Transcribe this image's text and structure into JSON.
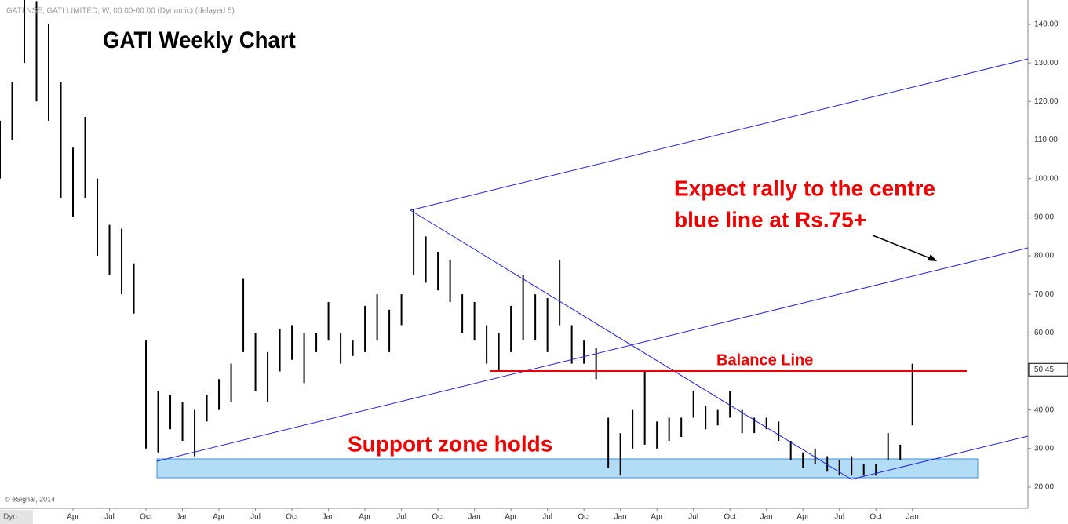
{
  "header": "GATI.NSE, GATI LIMITED, W, 00:00-00:00 (Dynamic) (delayed 5)",
  "footer": "© eSignal, 2014",
  "mode": "Dyn",
  "chart_data": {
    "type": "ohlc",
    "title": "GATI Weekly Chart",
    "annotations": {
      "rally": [
        "Expect rally to the centre",
        "blue line at Rs.75+"
      ],
      "balance": "Balance Line",
      "support": "Support zone holds"
    },
    "color": "#000000",
    "x": [
      0,
      1,
      2,
      3,
      4,
      5,
      6,
      7,
      8,
      9,
      10,
      11,
      12,
      13,
      14,
      15,
      16,
      17,
      18,
      19,
      20,
      21,
      22,
      23,
      24,
      25,
      26,
      27,
      28,
      29,
      30,
      31,
      32,
      33,
      34,
      35,
      36,
      37,
      38,
      39,
      40,
      41,
      42,
      43,
      44,
      45,
      46,
      47,
      48,
      49,
      50,
      51,
      52,
      53,
      54,
      55,
      56,
      57,
      58,
      59,
      60,
      61,
      62,
      63,
      64,
      65,
      66,
      67,
      68,
      69,
      70,
      71,
      72,
      73,
      74,
      75
    ],
    "high": [
      115,
      125,
      147,
      146,
      140,
      125,
      108,
      116,
      100,
      88,
      87,
      78,
      58,
      45,
      44,
      42,
      40,
      44,
      48,
      52,
      74,
      60,
      55,
      61,
      62,
      60,
      60,
      68,
      60,
      58,
      67,
      70,
      66,
      70,
      92,
      85,
      81,
      79,
      70,
      68,
      62,
      60,
      67,
      75,
      70,
      69,
      79,
      62,
      58,
      56,
      38,
      34,
      40,
      50,
      37,
      38,
      38,
      45,
      41,
      40,
      45,
      40,
      38,
      38,
      37,
      32,
      29,
      30,
      28,
      27,
      28,
      26,
      26,
      34,
      31,
      52
    ],
    "low": [
      100,
      110,
      130,
      120,
      115,
      95,
      90,
      95,
      80,
      75,
      70,
      65,
      30,
      29,
      35,
      32,
      28,
      37,
      40,
      42,
      55,
      45,
      42,
      50,
      53,
      47,
      55,
      58,
      52,
      54,
      55,
      58,
      55,
      62,
      75,
      73,
      71,
      68,
      60,
      58,
      52,
      50,
      55,
      58,
      58,
      55,
      62,
      52,
      52,
      48,
      25,
      23,
      30,
      31,
      30,
      32,
      33,
      38,
      35,
      36,
      38,
      34,
      34,
      35,
      32,
      27,
      25,
      26,
      24,
      23,
      23,
      23,
      23,
      27,
      27,
      36
    ],
    "last_price": 50.45,
    "xlim": [
      0,
      84.5
    ],
    "xticks": [
      {
        "value": 6,
        "label": "Apr"
      },
      {
        "value": 9,
        "label": "Jul"
      },
      {
        "value": 12,
        "label": "Oct"
      },
      {
        "value": 15,
        "label": "Jan"
      },
      {
        "value": 18,
        "label": "Apr"
      },
      {
        "value": 21,
        "label": "Jul"
      },
      {
        "value": 24,
        "label": "Oct"
      },
      {
        "value": 27,
        "label": "Jan"
      },
      {
        "value": 30,
        "label": "Apr"
      },
      {
        "value": 33,
        "label": "Jul"
      },
      {
        "value": 36,
        "label": "Oct"
      },
      {
        "value": 39,
        "label": "Jan"
      },
      {
        "value": 42,
        "label": "Apr"
      },
      {
        "value": 45,
        "label": "Jul"
      },
      {
        "value": 48,
        "label": "Oct"
      },
      {
        "value": 51,
        "label": "Jan"
      },
      {
        "value": 54,
        "label": "Apr"
      },
      {
        "value": 57,
        "label": "Jul"
      },
      {
        "value": 60,
        "label": "Oct"
      },
      {
        "value": 63,
        "label": "Jan"
      },
      {
        "value": 66,
        "label": "Apr"
      },
      {
        "value": 69,
        "label": "Jul"
      },
      {
        "value": 72,
        "label": "Oct"
      },
      {
        "value": 75,
        "label": "Jan"
      }
    ],
    "ylim": [
      14.5,
      146.3
    ],
    "yticks": [
      {
        "value": 20,
        "label": "20.00"
      },
      {
        "value": 30,
        "label": "30.00"
      },
      {
        "value": 40,
        "label": "40.00"
      },
      {
        "value": 50,
        "label": "50.00"
      },
      {
        "value": 60,
        "label": "60.00"
      },
      {
        "value": 70,
        "label": "70.00"
      },
      {
        "value": 80,
        "label": "80.00"
      },
      {
        "value": 90,
        "label": "90.00"
      },
      {
        "value": 100,
        "label": "100.00"
      },
      {
        "value": 110,
        "label": "110.00"
      },
      {
        "value": 120,
        "label": "120.00"
      },
      {
        "value": 130,
        "label": "130.00"
      },
      {
        "value": 140,
        "label": "140.00"
      }
    ]
  }
}
